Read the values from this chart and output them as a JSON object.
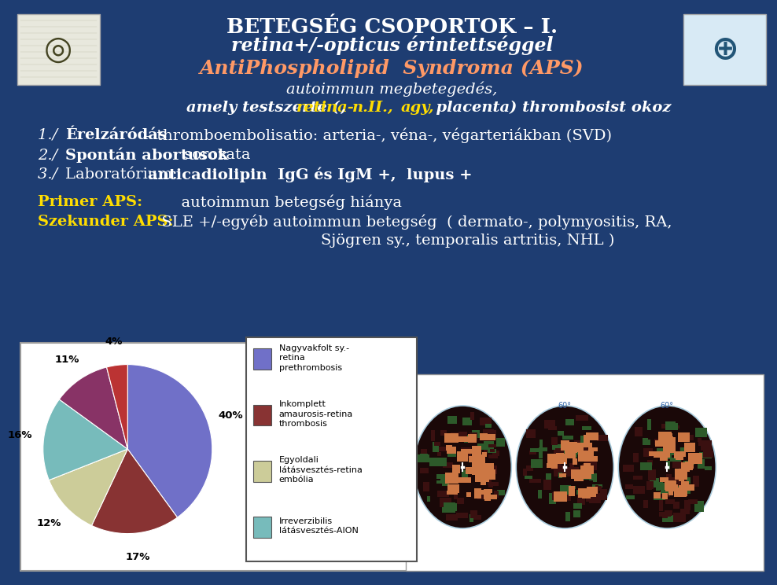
{
  "bg_color": "#1e3d72",
  "title_line1": "BETEGSÉG CSOPORTOK – I.",
  "title_line2": "retina+/-opticus érintettséggel",
  "title_color": "#ffffff",
  "subtitle_aps": "AntiPhospholipid  Syndroma (APS)",
  "subtitle_aps_color": "#ff9966",
  "subtitle2": "autoimmun megbetegedés,",
  "subtitle3_pre": "amely testszerte (",
  "subtitle3_retina": "retina-",
  "subtitle3_mid1": ", ",
  "subtitle3_nII": "n.II.,",
  "subtitle3_mid2": "  ",
  "subtitle3_agy": "agy,",
  "subtitle3_post": "  placenta) thrombosist okoz",
  "yellow_color": "#ffdd00",
  "text_color": "#ffffff",
  "label_color": "#ffdd00",
  "primer_label": "Primer APS:",
  "primer_text": "      autoimmun betegség hiánya",
  "szekunder_label": "Szekunder APS:",
  "szekunder_text1": "  SLE +/-egyéb autoimmun betegség  ( dermato-, polymyositis, RA,",
  "szekunder_text2": "Sjögren sy., temporalis artritis, NHL )",
  "pie_values": [
    40,
    17,
    12,
    16,
    11,
    4
  ],
  "pie_colors": [
    "#7070c8",
    "#883333",
    "#cccc99",
    "#77bbbb",
    "#883366",
    "#bb3333"
  ],
  "pie_labels": [
    "40%",
    "17%",
    "12%",
    "16%",
    "11%",
    "4%"
  ],
  "pie_legend": [
    "Nagyvakfolt sy.-\nretina\nprethrombosis",
    "Inkomplett\namaurosis-retina\nthrombosis",
    "Egyoldali\nlátásvesztés-retina\nembólia",
    "Irreverzibilis\nlátásvesztés-AION"
  ],
  "pie_legend_colors": [
    "#7070c8",
    "#883333",
    "#cccc99",
    "#77bbbb"
  ]
}
